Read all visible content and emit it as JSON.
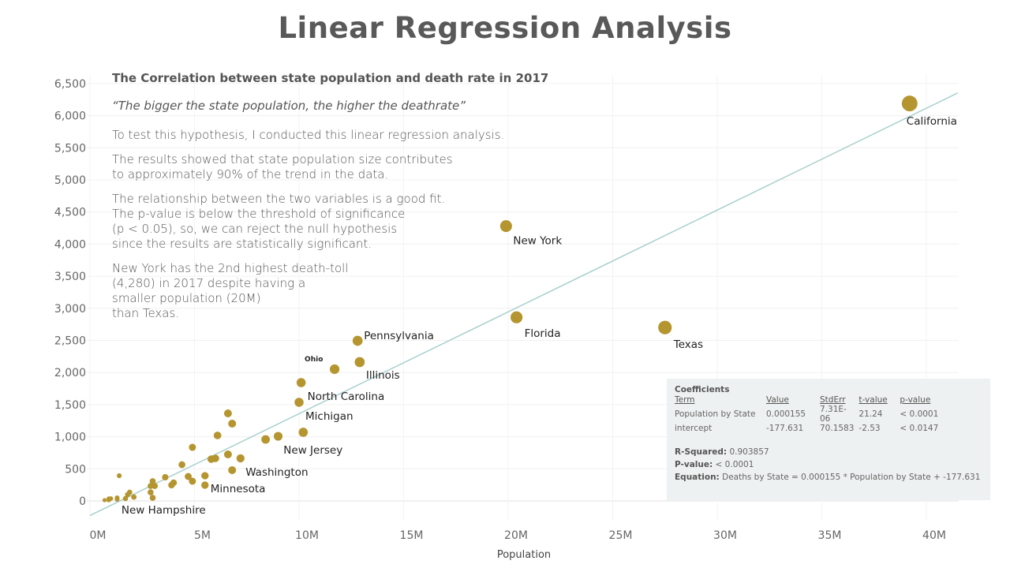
{
  "title": "Linear Regression Analysis",
  "story": {
    "heading": "The Correlation between state population and death rate in 2017",
    "quote": "“The bigger the state population, the higher the deathrate”",
    "paragraphs": [
      "To test this hypothesis, I conducted this linear regression analysis.",
      "The results showed that state population size contributes\nto approximately 90% of the trend in the data.",
      "The relationship between the two variables  is a good fit.\nThe p-value is below the threshold of significance\n(p < 0.05), so, we can reject the null hypothesis\nsince the results are statistically significant.",
      "New York has the 2nd highest death-toll\n(4,280) in 2017 despite having a\nsmaller population (20M)\nthan Texas."
    ]
  },
  "coefficients": {
    "title": "Coefficients",
    "headers": [
      "Term",
      "Value",
      "StdErr",
      "t-value",
      "p-value"
    ],
    "rows": [
      [
        "Population by State",
        "0.000155",
        "7.31E-06",
        "21.24",
        "< 0.0001"
      ],
      [
        "intercept",
        "-177.631",
        "70.1583",
        "-2.53",
        "< 0.0147"
      ]
    ],
    "r_squared_label": "R-Squared:",
    "r_squared": "0.903857",
    "p_value_label": "P-value:",
    "p_value": "< 0.0001",
    "equation_label": "Equation:",
    "equation": "Deaths by State = 0.000155 * Population by State + -177.631"
  },
  "chart_data": {
    "type": "scatter",
    "xlabel": "Population",
    "ylabel": "",
    "xlim": [
      0,
      41.5
    ],
    "ylim": [
      -150,
      6600
    ],
    "x_ticks": [
      "0M",
      "5M",
      "10M",
      "15M",
      "20M",
      "25M",
      "30M",
      "35M",
      "40M"
    ],
    "x_tick_values": [
      0,
      5,
      10,
      15,
      20,
      25,
      30,
      35,
      40
    ],
    "y_ticks": [
      "0",
      "500",
      "1,000",
      "1,500",
      "2,000",
      "2,500",
      "3,000",
      "3,500",
      "4,000",
      "4,500",
      "5,000",
      "5,500",
      "6,000",
      "6,500"
    ],
    "y_tick_values": [
      0,
      500,
      1000,
      1500,
      2000,
      2500,
      3000,
      3500,
      4000,
      4500,
      5000,
      5500,
      6000,
      6500
    ],
    "grid": true,
    "trend_line": {
      "slope_per_person": 0.000155,
      "intercept": -177.631,
      "color": "#a8d0cc"
    },
    "point_color": "#b5952f",
    "points": [
      {
        "label": "California",
        "x": 39.2,
        "y": 6190
      },
      {
        "label": "New York",
        "x": 19.9,
        "y": 4280
      },
      {
        "label": "Florida",
        "x": 20.4,
        "y": 2860
      },
      {
        "label": "Texas",
        "x": 27.5,
        "y": 2700
      },
      {
        "label": "Pennsylvania",
        "x": 12.8,
        "y": 2494
      },
      {
        "label": "Illinois",
        "x": 12.9,
        "y": 2162
      },
      {
        "label": "Ohio",
        "x": 11.7,
        "y": 2052
      },
      {
        "label": "North Carolina",
        "x": 10.1,
        "y": 1843
      },
      {
        "label": "Michigan",
        "x": 10.0,
        "y": 1536
      },
      {
        "label": "New Jersey",
        "x": 10.2,
        "y": 1069
      },
      {
        "label": "",
        "x": 9.0,
        "y": 1007
      },
      {
        "label": "",
        "x": 8.4,
        "y": 958
      },
      {
        "label": "",
        "x": 6.6,
        "y": 1364
      },
      {
        "label": "",
        "x": 6.8,
        "y": 1204
      },
      {
        "label": "",
        "x": 6.1,
        "y": 1020
      },
      {
        "label": "",
        "x": 4.9,
        "y": 835
      },
      {
        "label": "",
        "x": 4.4,
        "y": 565
      },
      {
        "label": "",
        "x": 5.8,
        "y": 651
      },
      {
        "label": "",
        "x": 6.0,
        "y": 663
      },
      {
        "label": "",
        "x": 6.6,
        "y": 725
      },
      {
        "label": "",
        "x": 7.2,
        "y": 663
      },
      {
        "label": "Washington",
        "x": 6.8,
        "y": 479
      },
      {
        "label": "",
        "x": 3.6,
        "y": 369
      },
      {
        "label": "",
        "x": 3.0,
        "y": 307
      },
      {
        "label": "",
        "x": 4.7,
        "y": 381
      },
      {
        "label": "",
        "x": 4.9,
        "y": 307
      },
      {
        "label": "",
        "x": 5.5,
        "y": 393
      },
      {
        "label": "Minnesota",
        "x": 5.5,
        "y": 246
      },
      {
        "label": "",
        "x": 4.0,
        "y": 283
      },
      {
        "label": "",
        "x": 3.9,
        "y": 246
      },
      {
        "label": "",
        "x": 2.9,
        "y": 233
      },
      {
        "label": "",
        "x": 3.1,
        "y": 233
      },
      {
        "label": "",
        "x": 2.9,
        "y": 135
      },
      {
        "label": "",
        "x": 3.0,
        "y": 49
      },
      {
        "label": "",
        "x": 1.4,
        "y": 393
      },
      {
        "label": "",
        "x": 1.9,
        "y": 135
      },
      {
        "label": "",
        "x": 1.8,
        "y": 98
      },
      {
        "label": "",
        "x": 2.1,
        "y": 61
      },
      {
        "label": "",
        "x": 1.7,
        "y": 37
      },
      {
        "label": "",
        "x": 1.3,
        "y": 49
      },
      {
        "label": "",
        "x": 1.3,
        "y": 25
      },
      {
        "label": "",
        "x": 1.0,
        "y": 37
      },
      {
        "label": "",
        "x": 0.9,
        "y": 37
      },
      {
        "label": "",
        "x": 0.7,
        "y": 12
      },
      {
        "label": "New Hampshire",
        "x": 0.9,
        "y": 12
      }
    ]
  }
}
